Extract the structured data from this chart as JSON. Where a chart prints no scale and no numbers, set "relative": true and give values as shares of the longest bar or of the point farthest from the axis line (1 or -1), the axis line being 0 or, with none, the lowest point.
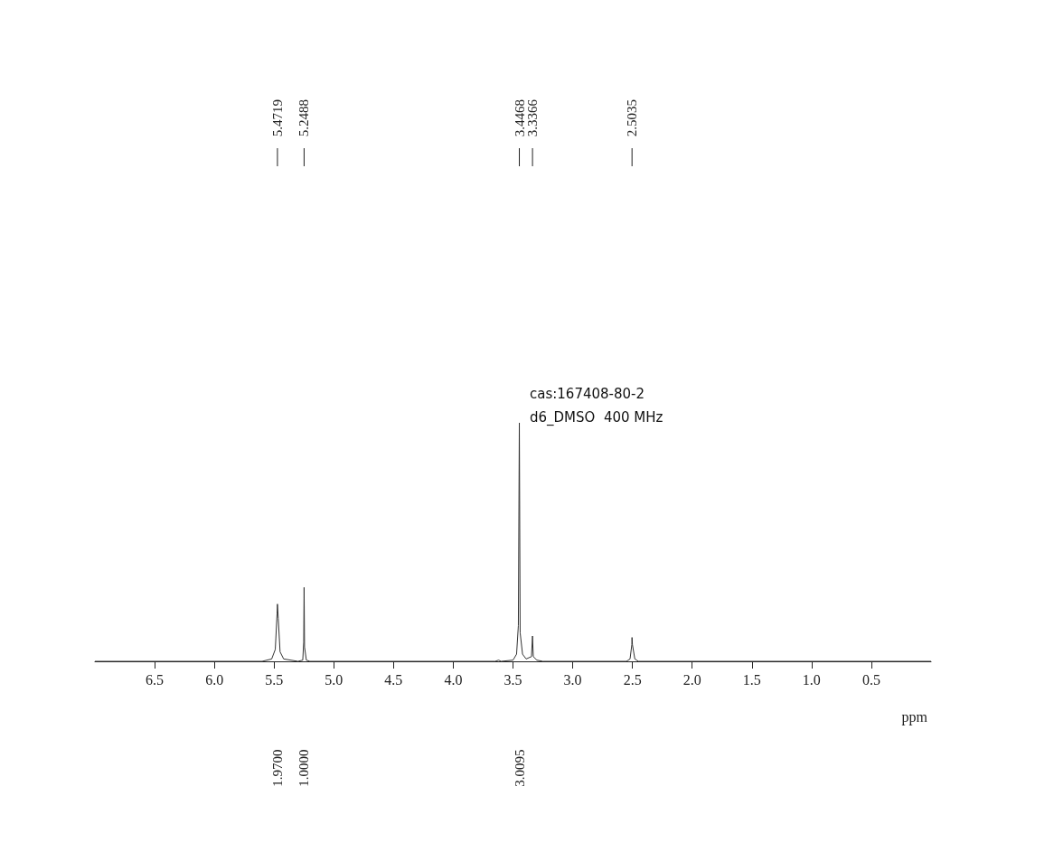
{
  "chart_data": {
    "type": "line",
    "relative": true,
    "color": "#333333",
    "xlabel": "ppm",
    "xlim": [
      7.0,
      0
    ],
    "xticks": [
      6.5,
      {
        "value": 6,
        "label": "6.0"
      },
      5.5,
      {
        "value": 5,
        "label": "5.0"
      },
      4.5,
      {
        "value": 4,
        "label": "4.0"
      },
      3.5,
      {
        "value": 3,
        "label": "3.0"
      },
      2.5,
      {
        "value": 2,
        "label": "2.0"
      },
      1.5,
      {
        "value": 1,
        "label": "1.0"
      },
      0.5
    ],
    "x": [
      7.0,
      5.6,
      5.52,
      5.49,
      5.475,
      5.4719,
      5.465,
      5.45,
      5.42,
      5.3,
      5.26,
      5.252,
      5.2488,
      5.245,
      5.23,
      5.2,
      3.65,
      3.62,
      3.6,
      3.5,
      3.47,
      3.455,
      3.4468,
      3.44,
      3.42,
      3.39,
      3.345,
      3.3366,
      3.33,
      3.3,
      3.25,
      2.55,
      2.52,
      2.505,
      2.5035,
      2.5,
      2.48,
      2.45,
      0
    ],
    "values": [
      0,
      0,
      0.01,
      0.05,
      0.2,
      0.24,
      0.18,
      0.04,
      0.01,
      0,
      0.005,
      0.08,
      0.31,
      0.06,
      0.005,
      0,
      0,
      0.005,
      0,
      0.005,
      0.03,
      0.15,
      1,
      0.12,
      0.03,
      0.01,
      0.02,
      0.106,
      0.02,
      0.005,
      0,
      0,
      0.01,
      0.07,
      0.1,
      0.07,
      0.01,
      0,
      0
    ],
    "annotations": [
      {
        "text": "5.4719",
        "x": 5.4719
      },
      {
        "text": "5.2488",
        "x": 5.2488
      },
      {
        "text": "3.4468",
        "x": 3.4468
      },
      {
        "text": "3.3366",
        "x": 3.3366
      },
      {
        "text": "2.5035",
        "x": 2.5035
      },
      "1.9700",
      "1.0000",
      "3.0095",
      "cas:167408-80-2",
      "d6_DMSO  400 MHz"
    ],
    "grid": false,
    "marker": "none",
    "line_style": "solid"
  }
}
